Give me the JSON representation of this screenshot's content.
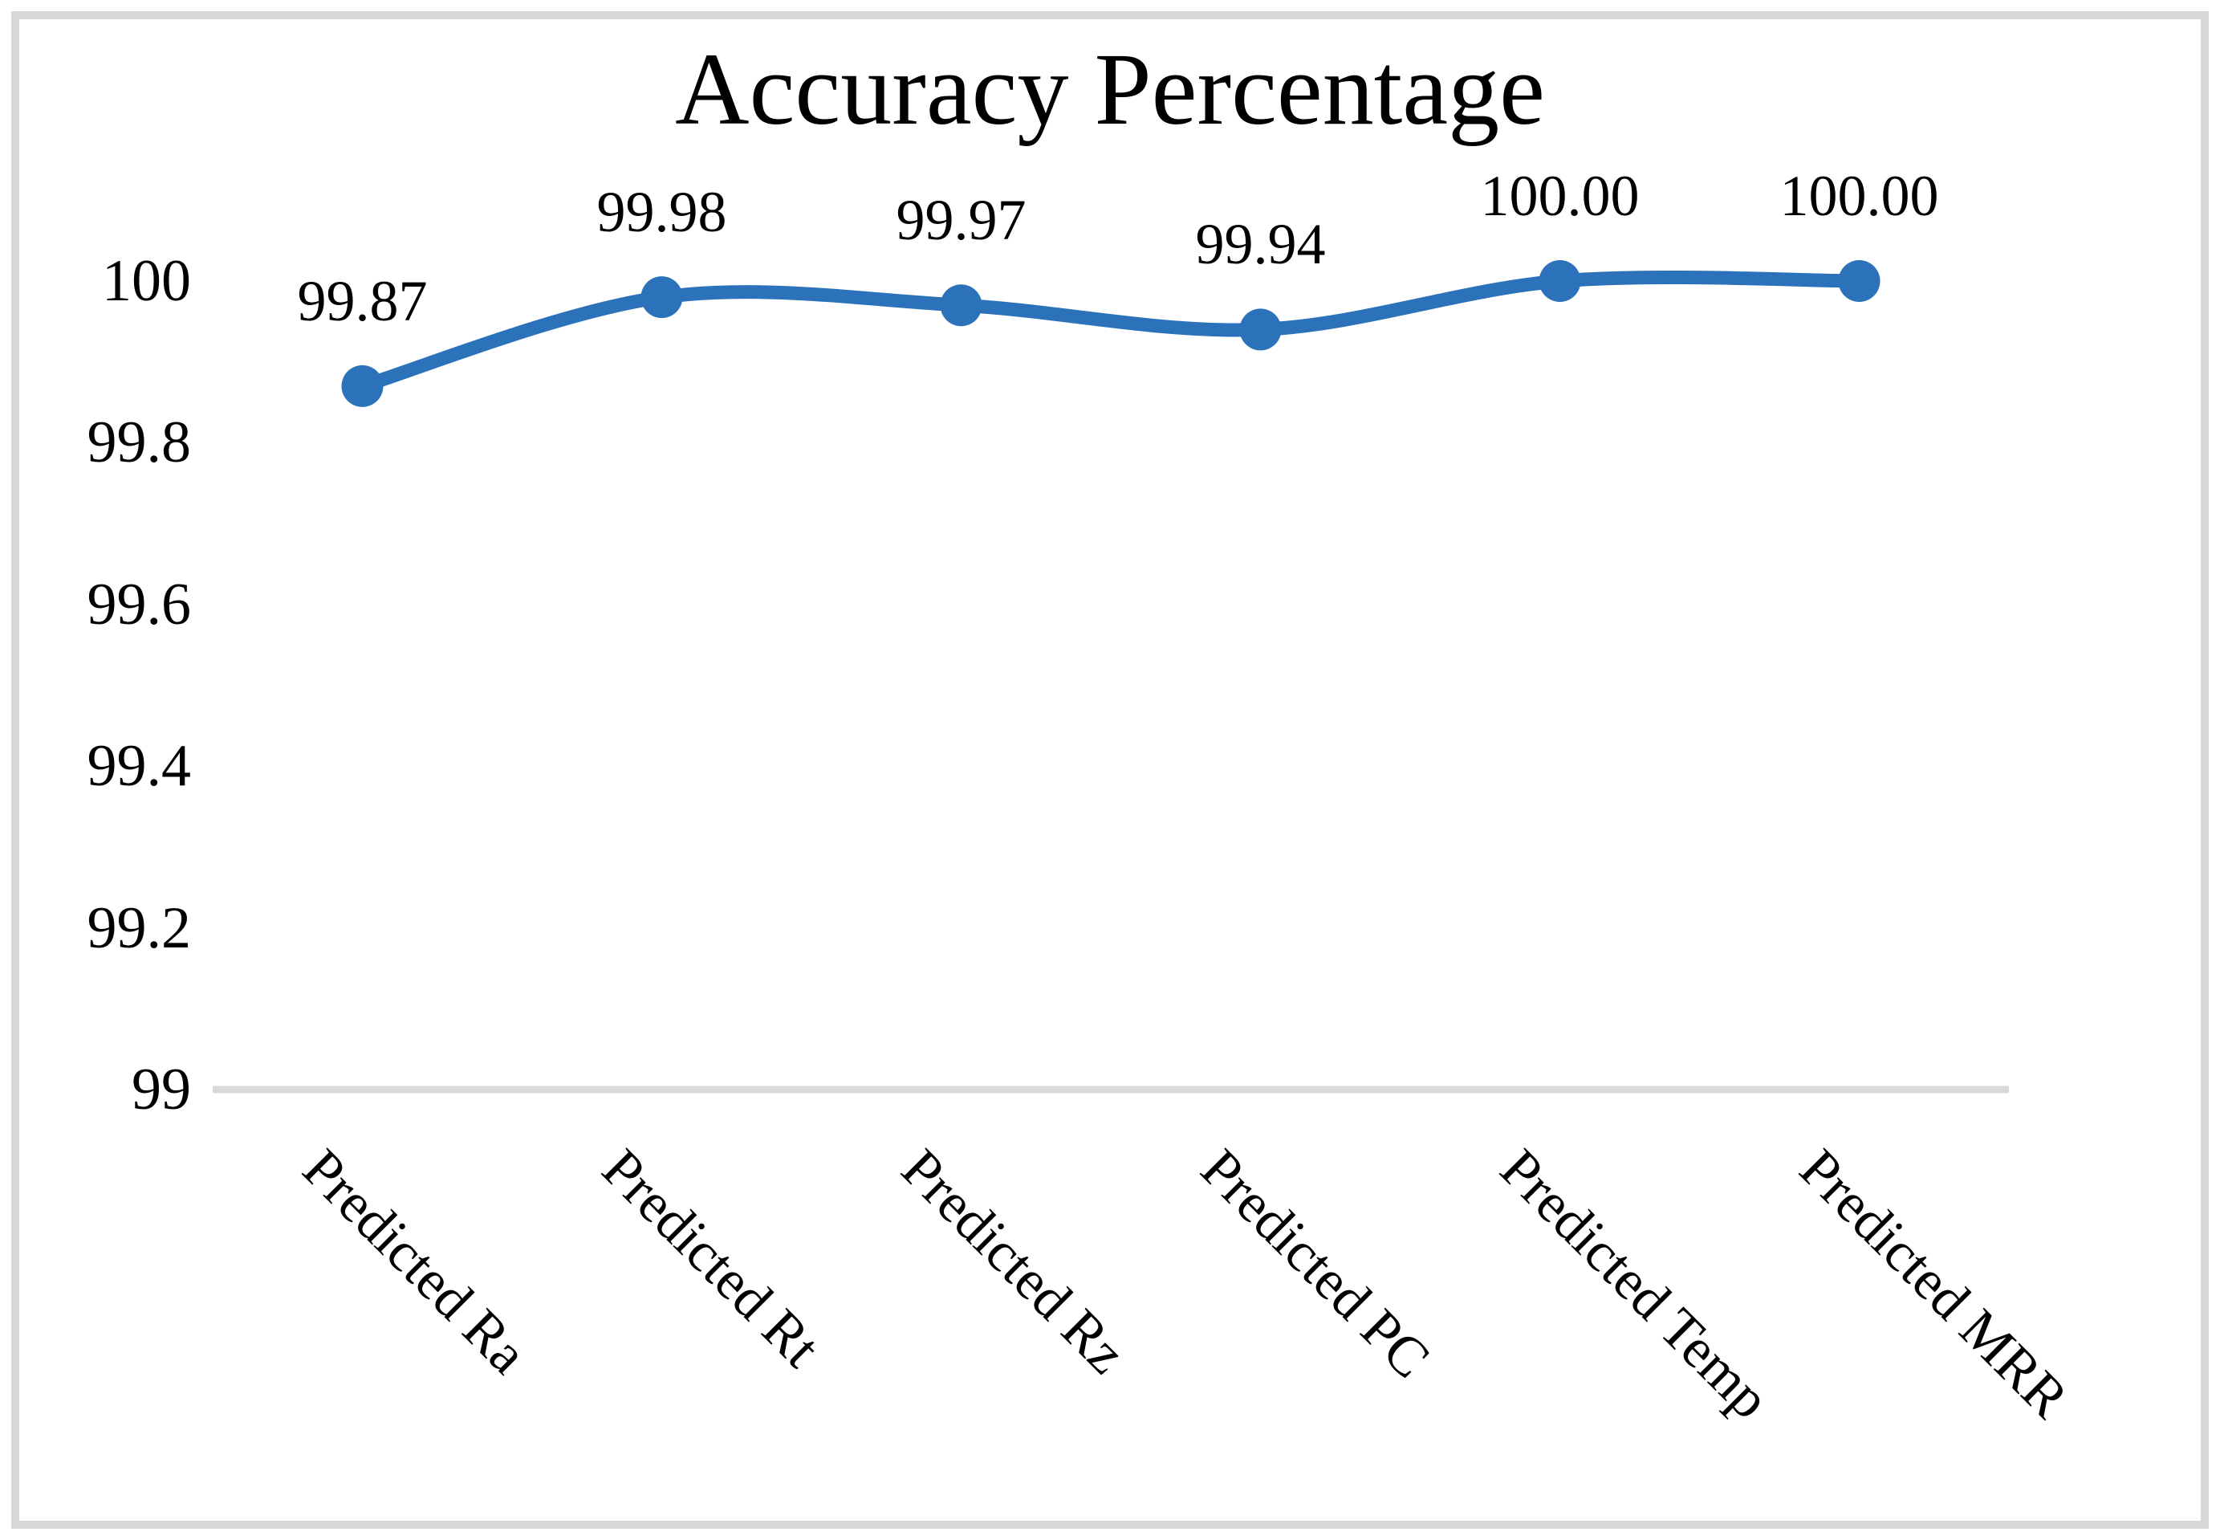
{
  "figure": {
    "background_color": "#ffffff",
    "border_color": "#D8D8D8"
  },
  "chart_data": {
    "type": "line",
    "title": "Accuracy Percentage",
    "categories": [
      "Predicted Ra",
      "Predicted Rt",
      "Predicted Rz",
      "Predicted PC",
      "Predicted Temp",
      "Predicted MRR"
    ],
    "series": [
      {
        "name": "Accuracy Percentage",
        "values": [
          99.87,
          99.98,
          99.97,
          99.94,
          100.0,
          100.0
        ]
      }
    ],
    "data_labels": [
      "99.87",
      "99.98",
      "99.97",
      "99.94",
      "100.00",
      "100.00"
    ],
    "data_label_position": "above",
    "y_ticks": [
      {
        "label": "100",
        "value": 100
      },
      {
        "label": "99.8",
        "value": 99.8
      },
      {
        "label": "99.6",
        "value": 99.6
      },
      {
        "label": "99.4",
        "value": 99.4
      },
      {
        "label": "99.2",
        "value": 99.2
      },
      {
        "label": "99",
        "value": 99
      }
    ],
    "ylim": [
      99,
      100
    ],
    "xlabel": "",
    "ylabel": "",
    "legend": "none",
    "grid": "off",
    "smoothed_line": true,
    "line_color": "#2B72BB",
    "marker_shape": "circle",
    "axis_line_color": "#D9D9D9",
    "text_color": "#000000",
    "category_label_rotation_deg": 45
  }
}
